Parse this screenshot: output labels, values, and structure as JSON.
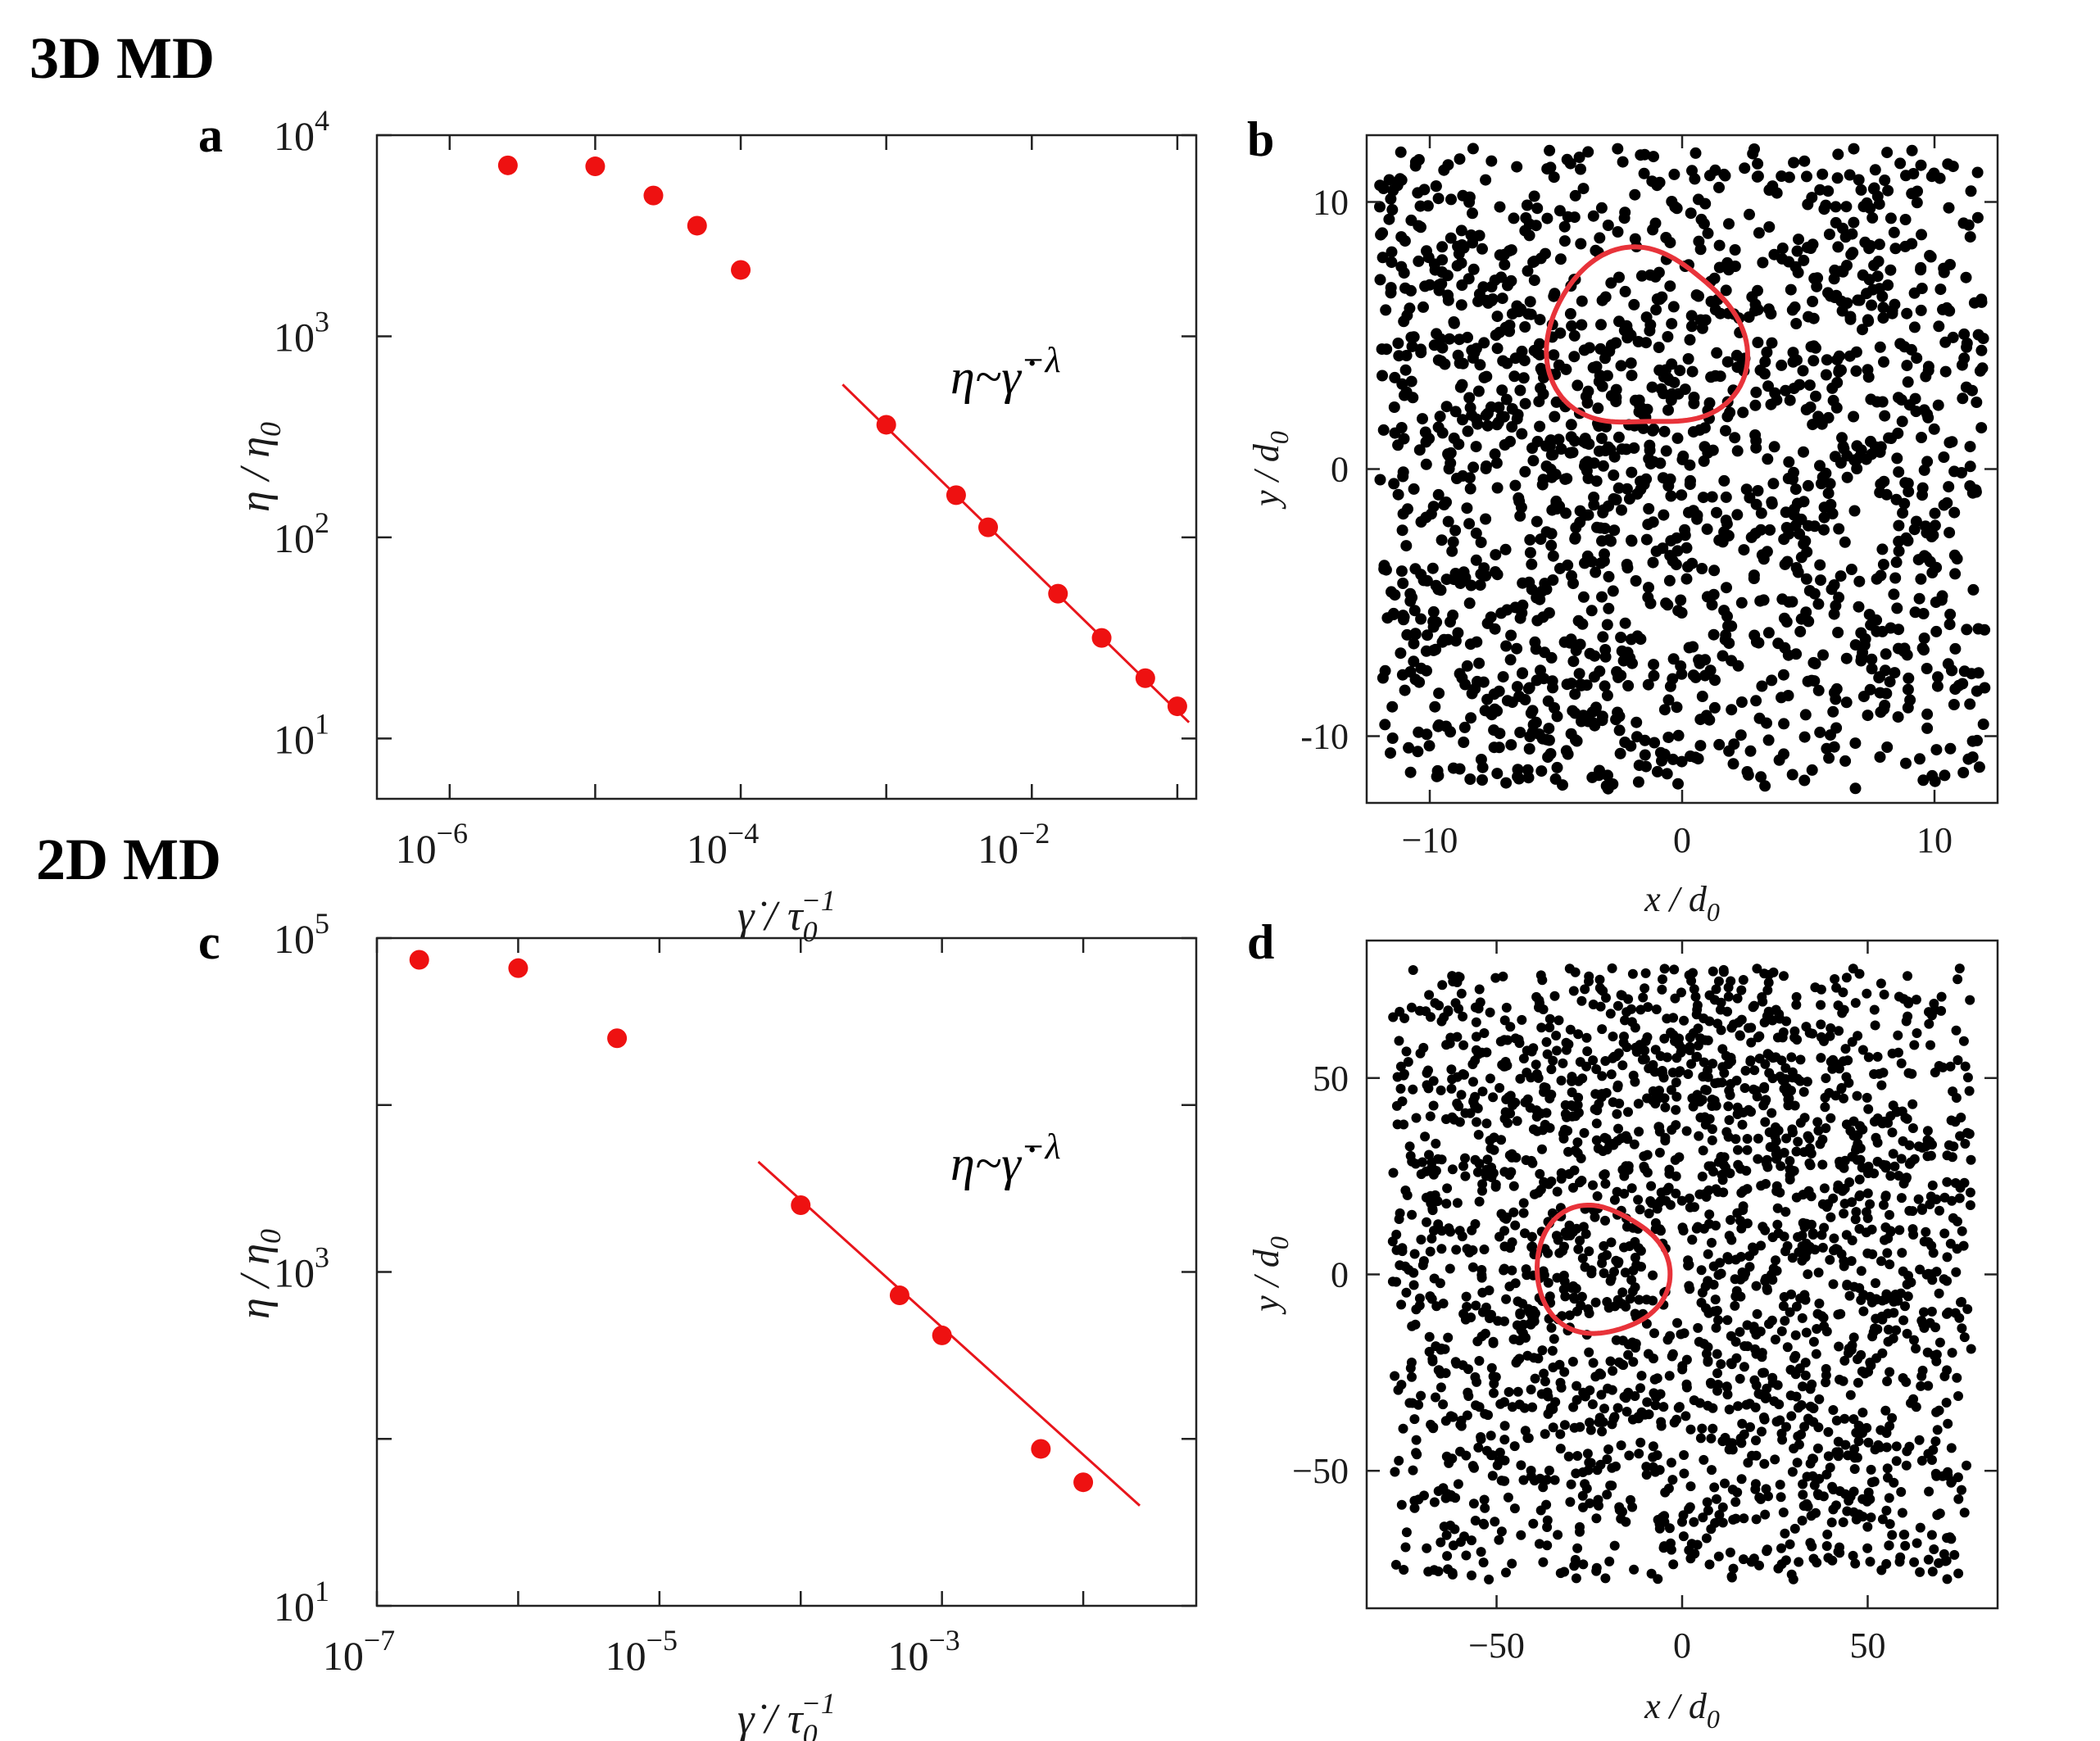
{
  "figure": {
    "section_top": "3D MD",
    "section_bottom": "2D MD"
  },
  "chart_data": [
    {
      "id": "a",
      "panel_label": "a",
      "type": "scatter",
      "xscale": "log",
      "yscale": "log",
      "xlim_exp": [
        -6.5,
        -0.87
      ],
      "ylim_exp": [
        0.7,
        4.0
      ],
      "x_ticks": [
        {
          "base": "10",
          "exp": "−6",
          "value": -6
        },
        {
          "base": "10",
          "exp": "−4",
          "value": -4
        },
        {
          "base": "10",
          "exp": "−2",
          "value": -2
        }
      ],
      "y_ticks": [
        {
          "base": "10",
          "exp": "1",
          "value": 1
        },
        {
          "base": "10",
          "exp": "2",
          "value": 2
        },
        {
          "base": "10",
          "exp": "3",
          "value": 3
        },
        {
          "base": "10",
          "exp": "4",
          "value": 4
        }
      ],
      "xlabel_main": "γ̇ / τ",
      "xlabel_sub": "0",
      "xlabel_sup": "−1",
      "ylabel_main": "η / η",
      "ylabel_sub": "0",
      "annotation_main": "η~γ̇",
      "annotation_sup": "−λ",
      "series": [
        {
          "name": "data",
          "log10_x": [
            -5.6,
            -5.0,
            -4.6,
            -4.3,
            -4.0,
            -3.0,
            -2.52,
            -2.3,
            -1.82,
            -1.52,
            -1.22,
            -1.0
          ],
          "log10_y": [
            3.85,
            3.845,
            3.7,
            3.55,
            3.33,
            2.56,
            2.21,
            2.05,
            1.72,
            1.5,
            1.3,
            1.16
          ]
        }
      ],
      "fit_line": {
        "log10_x": [
          -3.3,
          -0.92
        ],
        "log10_y": [
          2.76,
          1.08
        ]
      }
    },
    {
      "id": "c",
      "panel_label": "c",
      "type": "scatter",
      "xscale": "log",
      "yscale": "log",
      "xlim_exp": [
        -7.0,
        -1.2
      ],
      "ylim_exp": [
        1.0,
        5.0
      ],
      "x_ticks": [
        {
          "base": "10",
          "exp": "−7",
          "value": -7
        },
        {
          "base": "10",
          "exp": "−5",
          "value": -5
        },
        {
          "base": "10",
          "exp": "−3",
          "value": -3
        }
      ],
      "y_ticks": [
        {
          "base": "10",
          "exp": "1",
          "value": 1
        },
        {
          "base": "10",
          "exp": "3",
          "value": 3
        },
        {
          "base": "10",
          "exp": "5",
          "value": 5
        }
      ],
      "xlabel_main": "γ̇ / τ",
      "xlabel_sub": "0",
      "xlabel_sup": "−1",
      "ylabel_main": "η / η",
      "ylabel_sub": "0",
      "annotation_main": "η~γ̇",
      "annotation_sup": "−λ",
      "series": [
        {
          "name": "data",
          "log10_x": [
            -6.7,
            -6.0,
            -5.3,
            -4.0,
            -3.3,
            -3.0,
            -2.3,
            -2.0
          ],
          "log10_y": [
            4.87,
            4.82,
            4.4,
            3.4,
            2.86,
            2.62,
            1.94,
            1.74
          ]
        }
      ],
      "fit_line": {
        "log10_x": [
          -4.3,
          -1.6
        ],
        "log10_y": [
          3.66,
          1.6
        ]
      }
    },
    {
      "id": "b",
      "panel_label": "b",
      "type": "scatter",
      "xlim": [
        -12.5,
        12.5
      ],
      "ylim": [
        -12.5,
        12.5
      ],
      "x_ticks": [
        "−10",
        "0",
        "10"
      ],
      "x_tick_values": [
        -10,
        0,
        10
      ],
      "y_ticks": [
        "10",
        "0",
        "-10"
      ],
      "y_tick_values": [
        10,
        0,
        -10
      ],
      "xlabel_main": "x / d",
      "xlabel_sub": "0",
      "ylabel_main": "y / d",
      "ylabel_sub": "0",
      "particle_count": 1700,
      "particle_range": 12,
      "clusters": [
        [
          -10,
          8
        ],
        [
          -8,
          4
        ],
        [
          -3,
          -2
        ],
        [
          -10,
          -5
        ],
        [
          -2,
          5
        ],
        [
          -3,
          -9
        ],
        [
          4,
          -1
        ],
        [
          8,
          -6
        ],
        [
          -4,
          0
        ],
        [
          6,
          7
        ],
        [
          9,
          4
        ],
        [
          -7,
          -9
        ]
      ],
      "contour": {
        "cx": -1.5,
        "cy": 4.8,
        "r": 3.6,
        "harmonics": [
          [
            2,
            0.1,
            0.3
          ],
          [
            3,
            0.07,
            1.2
          ]
        ]
      }
    },
    {
      "id": "d",
      "panel_label": "d",
      "type": "scatter",
      "xlim": [
        -85,
        85
      ],
      "ylim": [
        -85,
        85
      ],
      "x_ticks": [
        "−50",
        "0",
        "50"
      ],
      "x_tick_values": [
        -50,
        0,
        50
      ],
      "y_ticks": [
        "50",
        "0",
        "−50"
      ],
      "y_tick_values": [
        50,
        0,
        -50
      ],
      "xlabel_main": "x / d",
      "xlabel_sub": "0",
      "ylabel_main": "y / d",
      "ylabel_sub": "0",
      "particle_count": 2300,
      "particle_range": 78,
      "clusters": [
        [
          -62,
          56
        ],
        [
          -45,
          40
        ],
        [
          -18,
          50
        ],
        [
          20,
          60
        ],
        [
          35,
          45
        ],
        [
          -70,
          10
        ],
        [
          -25,
          2
        ],
        [
          15,
          20
        ],
        [
          30,
          25
        ],
        [
          65,
          25
        ],
        [
          -10,
          -40
        ],
        [
          -50,
          -30
        ],
        [
          30,
          -10
        ],
        [
          55,
          -5
        ],
        [
          25,
          -45
        ],
        [
          -30,
          30
        ],
        [
          45,
          -55
        ],
        [
          0,
          70
        ]
      ],
      "contour": {
        "cx": -22,
        "cy": 1,
        "r": 17,
        "harmonics": [
          [
            2,
            0.06,
            0.5
          ],
          [
            3,
            0.05,
            0.2
          ]
        ]
      }
    }
  ]
}
